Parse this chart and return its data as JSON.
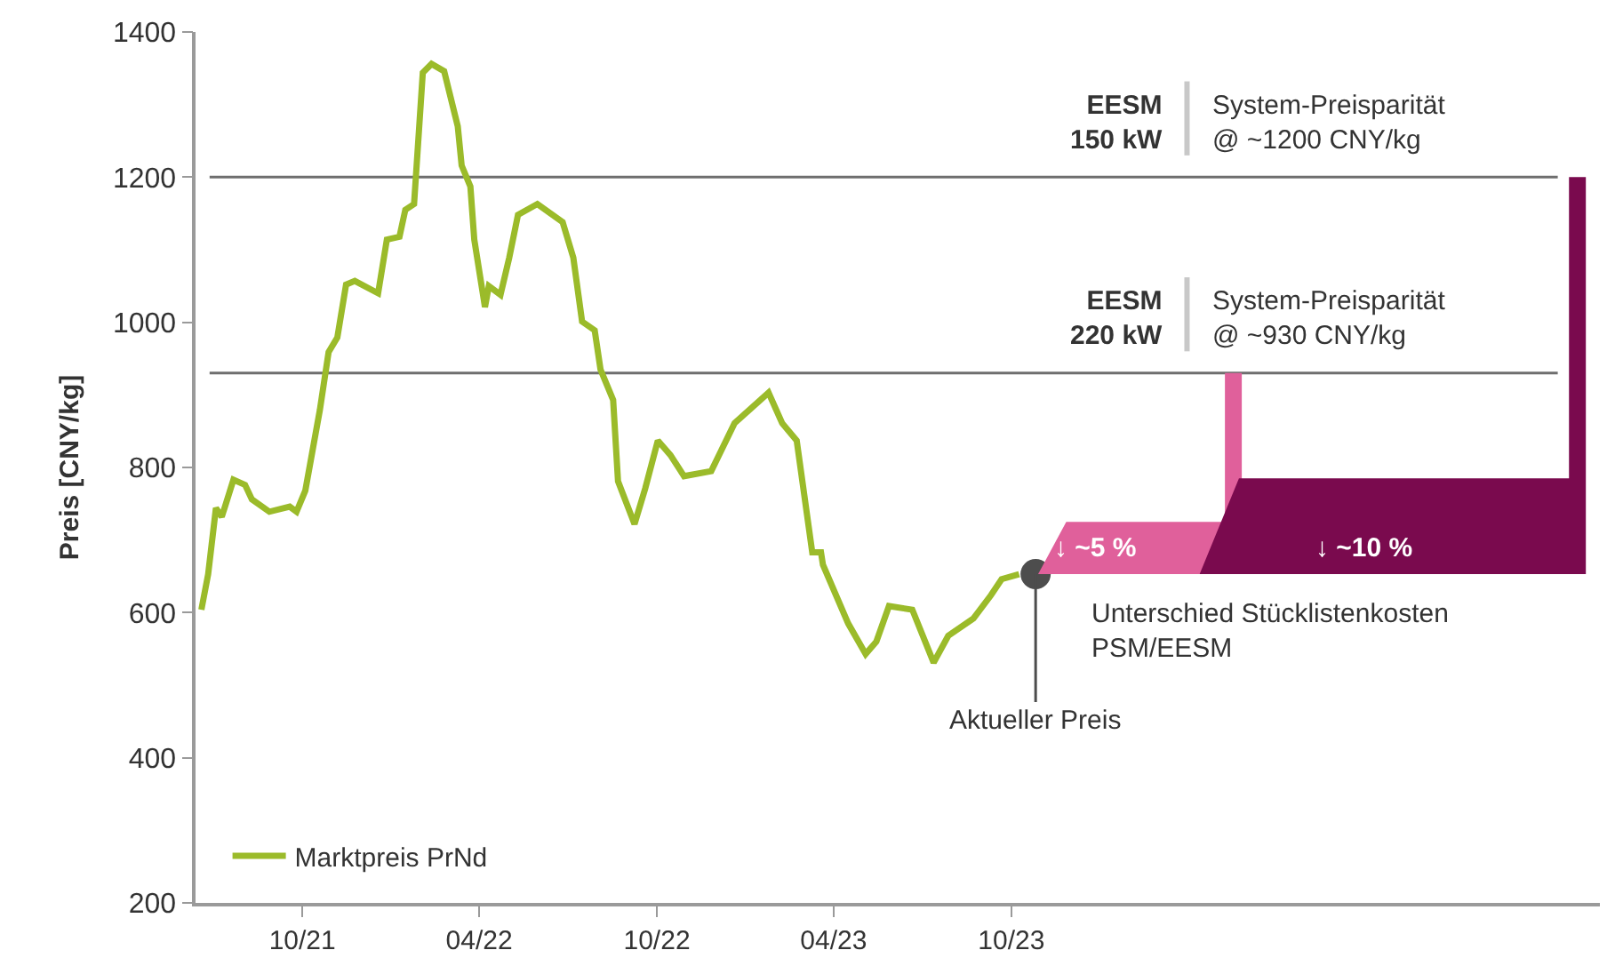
{
  "chart_data": {
    "type": "line",
    "ylabel": "Preis [CNY/kg]",
    "xlim": [
      "2021-06-13",
      "2025-05-29"
    ],
    "ylim": [
      200,
      1400
    ],
    "xticks": [
      {
        "value": "2021-10-01",
        "label": "10/21"
      },
      {
        "value": "2022-04-01",
        "label": "04/22"
      },
      {
        "value": "2022-10-01",
        "label": "10/22"
      },
      {
        "value": "2023-04-01",
        "label": "04/23"
      },
      {
        "value": "2023-10-01",
        "label": "10/23"
      }
    ],
    "yticks": [
      200,
      400,
      600,
      800,
      1000,
      1200,
      1400
    ],
    "grid": false,
    "legend": "bottom left",
    "marker": "none",
    "line_style": "solid",
    "series": [
      {
        "name": "Marktpreis PrNd",
        "color": "#9bbb2a",
        "x": [
          "2021-06-19",
          "2021-06-26",
          "2021-07-04",
          "2021-07-10",
          "2021-07-22",
          "2021-08-03",
          "2021-08-10",
          "2021-08-28",
          "2021-09-18",
          "2021-09-25",
          "2021-10-04",
          "2021-10-19",
          "2021-10-28",
          "2021-11-06",
          "2021-11-15",
          "2021-11-24",
          "2021-12-18",
          "2021-12-27",
          "2022-01-09",
          "2022-01-15",
          "2022-01-24",
          "2022-02-02",
          "2022-02-11",
          "2022-02-24",
          "2022-03-10",
          "2022-03-14",
          "2022-03-23",
          "2022-03-27",
          "2022-04-07",
          "2022-04-11",
          "2022-04-23",
          "2022-05-02",
          "2022-05-11",
          "2022-05-31",
          "2022-06-26",
          "2022-07-07",
          "2022-07-16",
          "2022-07-29",
          "2022-08-04",
          "2022-08-17",
          "2022-08-22",
          "2022-09-08",
          "2022-09-19",
          "2022-10-02",
          "2022-10-15",
          "2022-10-29",
          "2022-11-26",
          "2022-12-20",
          "2023-01-24",
          "2023-02-07",
          "2023-02-22",
          "2023-03-10",
          "2023-03-19",
          "2023-03-21",
          "2023-04-16",
          "2023-05-04",
          "2023-05-15",
          "2023-05-28",
          "2023-06-21",
          "2023-07-13",
          "2023-07-28",
          "2023-08-23",
          "2023-09-10",
          "2023-09-21",
          "2023-10-09"
        ],
        "values": [
          604,
          653,
          744,
          732,
          783,
          776,
          756,
          739,
          746,
          739,
          768,
          879,
          959,
          979,
          1052,
          1057,
          1040,
          1114,
          1118,
          1155,
          1163,
          1344,
          1356,
          1346,
          1270,
          1216,
          1187,
          1114,
          1021,
          1050,
          1038,
          1089,
          1148,
          1163,
          1138,
          1089,
          1001,
          989,
          935,
          893,
          781,
          722,
          771,
          837,
          817,
          788,
          795,
          861,
          903,
          861,
          837,
          683,
          683,
          666,
          585,
          543,
          560,
          609,
          604,
          531,
          568,
          592,
          624,
          646,
          653
        ]
      },
      {
        "type": "scatter",
        "color": "#4d4d4d",
        "marker": "circle",
        "x": [
          "2023-10-26"
        ],
        "values": [
          653
        ]
      }
    ],
    "ref_lines": [
      {
        "axis": "y",
        "value": 1200,
        "label": "EESM\n150 kW",
        "color": "#6e6e6e"
      },
      {
        "axis": "y",
        "value": 930,
        "label": "EESM\n220 kW",
        "color": "#6e6e6e"
      }
    ],
    "annotations": [
      {
        "text": "System-Preisparität\n@ ~1200 CNY/kg",
        "x": "2024-04-21",
        "y": 1200
      },
      {
        "text": "System-Preisparität\n@ ~930 CNY/kg",
        "x": "2024-04-21",
        "y": 930
      },
      {
        "text": "Aktueller Preis",
        "x": "2023-10-26",
        "y": 653
      },
      "↓ ~5 %",
      "↓ ~10 %",
      "Unterschied Stücklistenkosten\nPSM/EESM"
    ]
  }
}
